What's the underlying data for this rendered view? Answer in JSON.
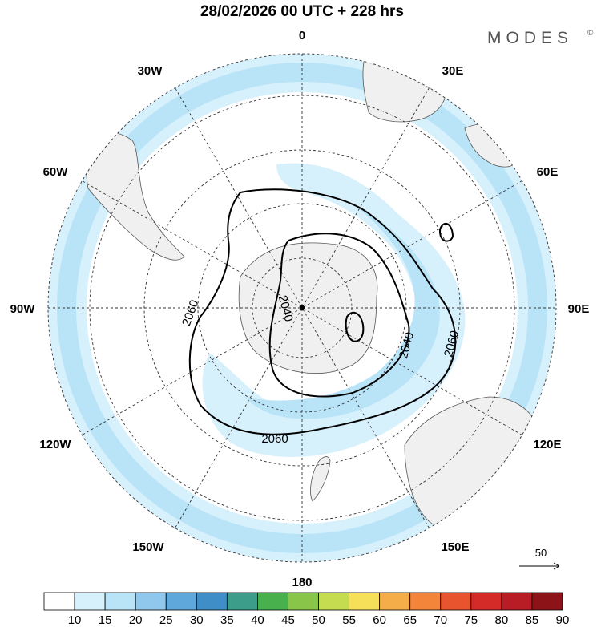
{
  "header": {
    "title": "28/02/2026  00 UTC  + 228 hrs",
    "brand": "MODES",
    "brand_mark": "©"
  },
  "map": {
    "projection": "south-polar-stereographic",
    "longitude_labels": {
      "top": "0",
      "top_right": "30E",
      "right_upper": "60E",
      "right": "90E",
      "right_lower": "120E",
      "bottom_right": "150E",
      "bottom": "180",
      "bottom_left": "150W",
      "left_lower": "120W",
      "left": "90W",
      "left_upper": "60W",
      "top_left": "30W"
    },
    "contours": [
      {
        "value": "2040",
        "label": "2040"
      },
      {
        "value": "2060",
        "label": "2060"
      }
    ],
    "contour_label_instances": [
      "2060",
      "2040",
      "2040",
      "2060",
      "2060"
    ],
    "vector_reference": {
      "label": "50"
    }
  },
  "colorbar": {
    "ticks": [
      "10",
      "15",
      "20",
      "25",
      "30",
      "35",
      "40",
      "45",
      "50",
      "55",
      "60",
      "65",
      "70",
      "75",
      "80",
      "85",
      "90"
    ],
    "colors": [
      "#ffffff",
      "#d6f0fc",
      "#b9e4f8",
      "#8fc8ec",
      "#5fa8dc",
      "#3f8ec8",
      "#3c9e8a",
      "#48b04c",
      "#88c548",
      "#c6dc50",
      "#f6e05a",
      "#f4ad48",
      "#f2853a",
      "#e8542e",
      "#d42a28",
      "#b81c24",
      "#8c1418"
    ]
  }
}
